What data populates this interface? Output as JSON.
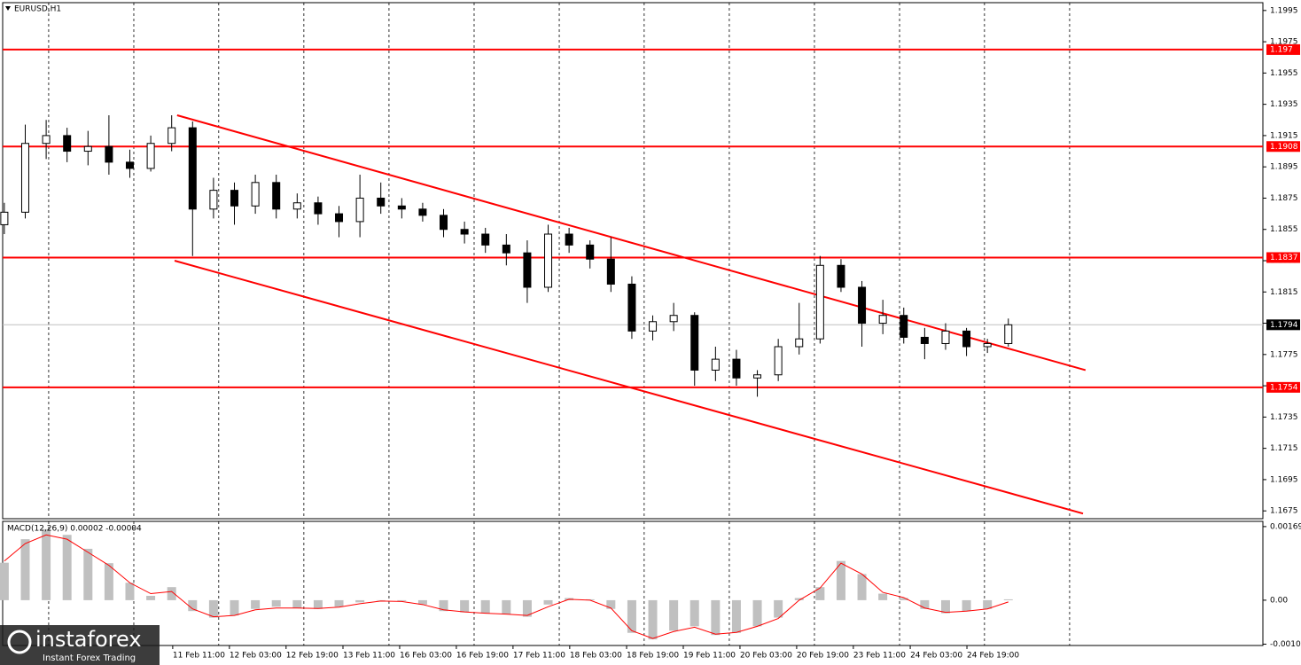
{
  "chart_data": {
    "type": "candlestick",
    "title": "EURUSD,H1",
    "open": [
      1.1858,
      1.1866,
      1.191,
      1.1915,
      1.1905,
      1.1908,
      1.1898,
      1.1894,
      1.191,
      1.192,
      1.1868,
      1.188,
      1.187,
      1.1885,
      1.1868,
      1.1872,
      1.1865,
      1.186,
      1.1875,
      1.187,
      1.1868,
      1.1864,
      1.1855,
      1.1852,
      1.1845,
      1.184,
      1.1818,
      1.1852,
      1.1845,
      1.1836,
      1.182,
      1.179,
      1.1796,
      1.18,
      1.1765,
      1.1772,
      1.176,
      1.1762,
      1.178,
      1.1785,
      1.1832,
      1.1818,
      1.1795,
      1.18,
      1.1786,
      1.1782,
      1.179,
      1.178,
      1.1782
    ],
    "high": [
      1.1872,
      1.1922,
      1.1925,
      1.192,
      1.1918,
      1.1928,
      1.1906,
      1.1915,
      1.1928,
      1.1924,
      1.1888,
      1.1885,
      1.189,
      1.189,
      1.1878,
      1.1876,
      1.187,
      1.189,
      1.1885,
      1.1875,
      1.1872,
      1.1868,
      1.186,
      1.1856,
      1.1852,
      1.1848,
      1.1858,
      1.1856,
      1.1848,
      1.185,
      1.1825,
      1.18,
      1.1808,
      1.1802,
      1.178,
      1.1778,
      1.1765,
      1.1785,
      1.1808,
      1.1838,
      1.1836,
      1.1822,
      1.181,
      1.1805,
      1.1792,
      1.1795,
      1.1792,
      1.1785,
      1.1798
    ],
    "low": [
      1.1852,
      1.1862,
      1.19,
      1.1898,
      1.1896,
      1.189,
      1.1888,
      1.1892,
      1.1905,
      1.1838,
      1.1862,
      1.1858,
      1.1865,
      1.1862,
      1.1862,
      1.1858,
      1.185,
      1.185,
      1.1865,
      1.1862,
      1.186,
      1.185,
      1.1846,
      1.184,
      1.1832,
      1.1808,
      1.1815,
      1.184,
      1.183,
      1.1815,
      1.1785,
      1.1784,
      1.179,
      1.1755,
      1.1758,
      1.1755,
      1.1748,
      1.1758,
      1.1775,
      1.1782,
      1.1815,
      1.178,
      1.1788,
      1.1782,
      1.1772,
      1.1778,
      1.1774,
      1.1776,
      1.178
    ],
    "close": [
      1.1866,
      1.191,
      1.1915,
      1.1905,
      1.1908,
      1.1898,
      1.1894,
      1.191,
      1.192,
      1.1868,
      1.188,
      1.187,
      1.1885,
      1.1868,
      1.1872,
      1.1865,
      1.186,
      1.1875,
      1.187,
      1.1868,
      1.1864,
      1.1855,
      1.1852,
      1.1845,
      1.184,
      1.1818,
      1.1852,
      1.1845,
      1.1836,
      1.182,
      1.179,
      1.1796,
      1.18,
      1.1765,
      1.1772,
      1.176,
      1.1762,
      1.178,
      1.1785,
      1.1832,
      1.1818,
      1.1795,
      1.18,
      1.1786,
      1.1782,
      1.179,
      1.178,
      1.1782,
      1.1794
    ],
    "xlim": [
      -0.08,
      60.17
    ],
    "xticks": [
      {
        "value": 8.05,
        "label": "11 Feb 11:00"
      },
      {
        "value": 10.76,
        "label": "12 Feb 03:00"
      },
      {
        "value": 13.47,
        "label": "12 Feb 19:00"
      },
      {
        "value": 16.19,
        "label": "13 Feb 11:00"
      },
      {
        "value": 18.9,
        "label": "16 Feb 03:00"
      },
      {
        "value": 21.61,
        "label": "16 Feb 19:00"
      },
      {
        "value": 24.32,
        "label": "17 Feb 11:00"
      },
      {
        "value": 27.03,
        "label": "18 Feb 03:00"
      },
      {
        "value": 29.75,
        "label": "18 Feb 19:00"
      },
      {
        "value": 32.46,
        "label": "19 Feb 11:00"
      },
      {
        "value": 35.17,
        "label": "20 Feb 03:00"
      },
      {
        "value": 37.88,
        "label": "20 Feb 19:00"
      },
      {
        "value": 40.59,
        "label": "23 Feb 11:00"
      },
      {
        "value": 43.31,
        "label": "24 Feb 03:00"
      },
      {
        "value": 46.02,
        "label": "24 Feb 19:00"
      }
    ],
    "xgrid": [
      2.12,
      6.19,
      10.25,
      14.32,
      18.39,
      22.46,
      26.53,
      30.59,
      34.66,
      38.73,
      42.8,
      46.86,
      50.93
    ],
    "ylim": [
      1.167,
      1.2
    ],
    "yticks": [
      1.1675,
      1.1695,
      1.1715,
      1.1735,
      1.1755,
      1.1775,
      1.1795,
      1.1815,
      1.1835,
      1.1855,
      1.1875,
      1.1895,
      1.1915,
      1.1935,
      1.1955,
      1.1975,
      1.1995
    ],
    "levels": [
      1.197,
      1.1908,
      1.1837,
      1.1754
    ],
    "level_color": "#ff0000",
    "current_price": 1.1794,
    "trendlines": [
      {
        "x": [
          8.26,
          51.69
        ],
        "y": [
          1.1928,
          1.1765
        ]
      },
      {
        "x": [
          8.14,
          51.57
        ],
        "y": [
          1.1835,
          1.16733
        ]
      }
    ],
    "macd": {
      "title": "MACD(12,26,9) 0.00002 -0.00004",
      "ylim": [
        -0.00104,
        0.00181
      ],
      "yticks": [
        0.00169,
        {
          "value": 0,
          "label": "0.00"
        },
        -0.00101
      ],
      "histogram": [
        0.00086,
        0.0014,
        0.00163,
        0.0015,
        0.00118,
        0.00085,
        0.0004,
        0.0001,
        0.0003,
        -0.00025,
        -0.0004,
        -0.00035,
        -0.0002,
        -0.00015,
        -0.00018,
        -0.0002,
        -0.00015,
        -5e-05,
        0,
        -2e-05,
        -0.0001,
        -0.00025,
        -0.00028,
        -0.0003,
        -0.00032,
        -0.00038,
        -0.0001,
        5e-05,
        2e-05,
        -0.0002,
        -0.00075,
        -0.0009,
        -0.0007,
        -0.0006,
        -0.0008,
        -0.00075,
        -0.0006,
        -0.0004,
        5e-05,
        0.0003,
        0.0009,
        0.0006,
        0.00015,
        5e-05,
        -0.0002,
        -0.0003,
        -0.00025,
        -0.0002,
        2e-05
      ],
      "signal": [
        0.0009,
        0.0013,
        0.0015,
        0.0014,
        0.0011,
        0.0008,
        0.0004,
        0.00015,
        0.0002,
        -0.0002,
        -0.00038,
        -0.00035,
        -0.00022,
        -0.00018,
        -0.00018,
        -0.00019,
        -0.00016,
        -8e-05,
        -2e-05,
        -3e-05,
        -0.0001,
        -0.00022,
        -0.00027,
        -0.0003,
        -0.00032,
        -0.00035,
        -0.00015,
        2e-05,
        0,
        -0.00018,
        -0.0007,
        -0.00088,
        -0.00072,
        -0.00062,
        -0.00078,
        -0.00074,
        -0.0006,
        -0.00042,
        0,
        0.00028,
        0.00085,
        0.0006,
        0.00018,
        6e-05,
        -0.00018,
        -0.00028,
        -0.00025,
        -0.0002,
        -4e-05
      ],
      "signal_color": "#ff0000"
    },
    "logo": {
      "name": "instaforex",
      "tagline": "Instant Forex Trading"
    }
  }
}
